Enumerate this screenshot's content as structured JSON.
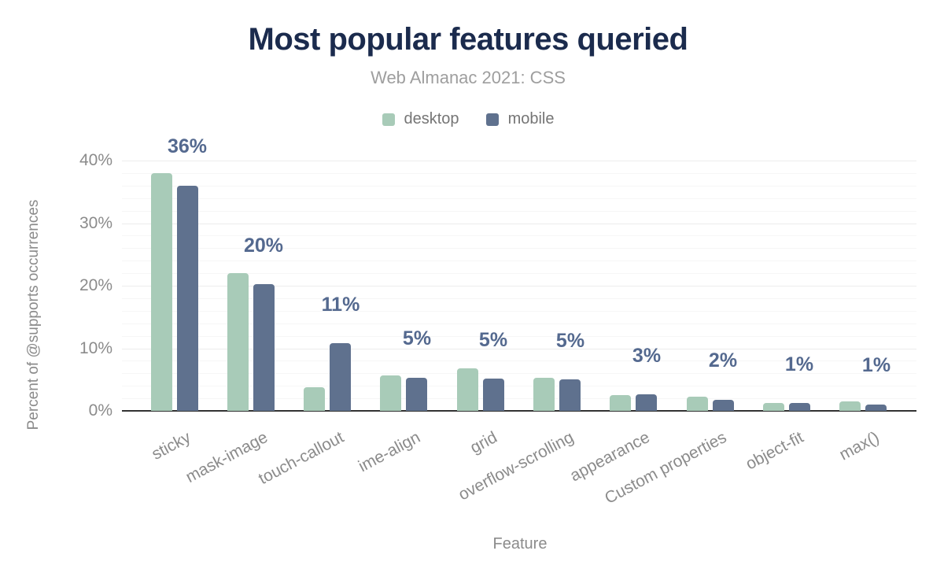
{
  "chart_data": {
    "type": "bar",
    "title": "Most popular features queried",
    "subtitle": "Web Almanac 2021: CSS",
    "xlabel": "Feature",
    "ylabel": "Percent of @supports occurrences",
    "categories": [
      "sticky",
      "mask-image",
      "touch-callout",
      "ime-align",
      "grid",
      "overflow-scrolling",
      "appearance",
      "Custom properties",
      "object-fit",
      "max()"
    ],
    "series": [
      {
        "name": "desktop",
        "color": "#a8cbb8",
        "values": [
          38,
          22,
          3.8,
          5.6,
          6.8,
          5.3,
          2.5,
          2.3,
          1.2,
          1.5
        ]
      },
      {
        "name": "mobile",
        "color": "#5f718e",
        "values": [
          36,
          20.2,
          10.8,
          5.3,
          5.1,
          5.0,
          2.6,
          1.8,
          1.2,
          1.0
        ]
      }
    ],
    "bar_labels": [
      "36%",
      "20%",
      "11%",
      "5%",
      "5%",
      "5%",
      "3%",
      "2%",
      "1%",
      "1%"
    ],
    "yticks": [
      {
        "value": 0,
        "label": "0%"
      },
      {
        "value": 10,
        "label": "10%"
      },
      {
        "value": 20,
        "label": "20%"
      },
      {
        "value": 30,
        "label": "30%"
      },
      {
        "value": 40,
        "label": "40%"
      }
    ],
    "ylim": [
      0,
      40
    ],
    "grid": "horizontal, minor every 2%, major every 10%",
    "legend_position": "top-center",
    "colors": {
      "title": "#1b2b4d",
      "subtitle": "#9e9e9e",
      "axis_text": "#8b8b8b",
      "data_label": "#54698f",
      "grid_minor": "#f6f6f6",
      "grid_major": "#ececec",
      "baseline": "#333333",
      "background": "#ffffff"
    }
  }
}
